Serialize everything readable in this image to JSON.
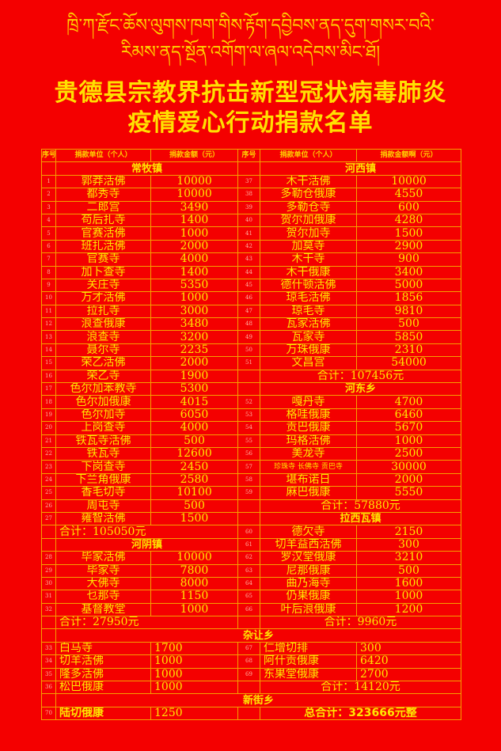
{
  "tibetan": {
    "line1": "ཁྲི་ཀ་རྫོང་ཆོས་ལུགས་ཁག་གིས་རྟོག་དབྱིབས་ནད་དུག་གསར་བའི་",
    "line2": "རིམས་ནད་སྔོན་འགོག་ལ་ཞལ་འདེབས་མིང་ཐོ།"
  },
  "title": {
    "line1": "贵德县宗教界抗击新型冠状病毒肺炎",
    "line2": "疫情爱心行动捐款名单"
  },
  "colors": {
    "background": "#f40000",
    "text": "#ffe600",
    "grid": "#f5a000"
  },
  "header": {
    "left": {
      "no": "序号",
      "name": "捐款单位（个人）",
      "amount": "捐款金额（元）"
    },
    "right": {
      "no": "序号",
      "name": "捐款单位（个人）",
      "amount": "捐款金额啊（元）"
    }
  },
  "left": [
    {
      "section": "常牧镇"
    },
    {
      "no": "1",
      "name": "郭莽活佛",
      "amount": "10000"
    },
    {
      "no": "2",
      "name": "都秀寺",
      "amount": "10000"
    },
    {
      "no": "3",
      "name": "二郎宫",
      "amount": "3490"
    },
    {
      "no": "4",
      "name": "苟后扎寺",
      "amount": "1400"
    },
    {
      "no": "5",
      "name": "官赛活佛",
      "amount": "1000"
    },
    {
      "no": "6",
      "name": "班扎活佛",
      "amount": "2000"
    },
    {
      "no": "7",
      "name": "官赛寺",
      "amount": "4000"
    },
    {
      "no": "8",
      "name": "加卜查寺",
      "amount": "1400"
    },
    {
      "no": "9",
      "name": "关庄寺",
      "amount": "5350"
    },
    {
      "no": "10",
      "name": "万才活佛",
      "amount": "1000"
    },
    {
      "no": "11",
      "name": "拉扎寺",
      "amount": "3000"
    },
    {
      "no": "12",
      "name": "浪查俄康",
      "amount": "3480"
    },
    {
      "no": "13",
      "name": "浪查寺",
      "amount": "3200"
    },
    {
      "no": "14",
      "name": "聂尔寺",
      "amount": "2235"
    },
    {
      "no": "15",
      "name": "荣乙活佛",
      "amount": "2000"
    },
    {
      "no": "16",
      "name": "荣乙寺",
      "amount": "1900"
    },
    {
      "no": "17",
      "name": "色尔加苯教寺",
      "amount": "5300"
    },
    {
      "no": "18",
      "name": "色尔加俄康",
      "amount": "4015"
    },
    {
      "no": "19",
      "name": "色尔加寺",
      "amount": "6050"
    },
    {
      "no": "20",
      "name": "上岗查寺",
      "amount": "4000"
    },
    {
      "no": "21",
      "name": "铁瓦寺活佛",
      "amount": "500"
    },
    {
      "no": "22",
      "name": "铁瓦寺",
      "amount": "12600"
    },
    {
      "no": "23",
      "name": "下岗查寺",
      "amount": "2450"
    },
    {
      "no": "24",
      "name": "下兰角俄康",
      "amount": "2580"
    },
    {
      "no": "25",
      "name": "香毛切寺",
      "amount": "10100"
    },
    {
      "no": "26",
      "name": "周屯寺",
      "amount": "500"
    },
    {
      "no": "27",
      "name": "雍智活佛",
      "amount": "1500"
    },
    {
      "subtotal": "合计：105050元"
    },
    {
      "section": "河阴镇"
    },
    {
      "no": "28",
      "name": "毕家活佛",
      "amount": "10000"
    },
    {
      "no": "29",
      "name": "毕家寺",
      "amount": "7800"
    },
    {
      "no": "30",
      "name": "大佛寺",
      "amount": "8000"
    },
    {
      "no": "31",
      "name": "乜那寺",
      "amount": "1150"
    },
    {
      "no": "32",
      "name": "基督教堂",
      "amount": "1000"
    },
    {
      "subtotal": "合计：27950元"
    }
  ],
  "right": [
    {
      "section": "河西镇"
    },
    {
      "no": "37",
      "name": "木干活佛",
      "amount": "10000"
    },
    {
      "no": "38",
      "name": "多勒仓俄康",
      "amount": "4550"
    },
    {
      "no": "39",
      "name": "多勒仓寺",
      "amount": "600"
    },
    {
      "no": "40",
      "name": "贺尔加俄康",
      "amount": "4280"
    },
    {
      "no": "41",
      "name": "贺尔加寺",
      "amount": "1500"
    },
    {
      "no": "42",
      "name": "加莫寺",
      "amount": "2900"
    },
    {
      "no": "43",
      "name": "木干寺",
      "amount": "900"
    },
    {
      "no": "44",
      "name": "木干俄康",
      "amount": "3400"
    },
    {
      "no": "45",
      "name": "德什顿活佛",
      "amount": "5000"
    },
    {
      "no": "46",
      "name": "琼毛活佛",
      "amount": "1856"
    },
    {
      "no": "47",
      "name": "琼毛寺",
      "amount": "9810"
    },
    {
      "no": "48",
      "name": "瓦家活佛",
      "amount": "500"
    },
    {
      "no": "49",
      "name": "瓦家寺",
      "amount": "5850"
    },
    {
      "no": "50",
      "name": "万珠俄康",
      "amount": "2310"
    },
    {
      "no": "51",
      "name": "文昌宫",
      "amount": "54000"
    },
    {
      "subtotal": "合计：107456元"
    },
    {
      "section": "河东乡"
    },
    {
      "no": "52",
      "name": "嘎丹寺",
      "amount": "4700"
    },
    {
      "no": "53",
      "name": "格哇俄康",
      "amount": "6460"
    },
    {
      "no": "54",
      "name": "贡巴俄康",
      "amount": "5670"
    },
    {
      "no": "55",
      "name": "玛格活佛",
      "amount": "1000"
    },
    {
      "no": "56",
      "name": "美龙寺",
      "amount": "2500"
    },
    {
      "no": "57",
      "name": "珍珠寺 长佛寺 贡巴寺",
      "amount": "30000",
      "small": true
    },
    {
      "no": "58",
      "name": "堪布诺日",
      "amount": "2000"
    },
    {
      "no": "59",
      "name": "麻巴俄康",
      "amount": "5550"
    },
    {
      "subtotal": "合计：57880元"
    },
    {
      "section": "拉西瓦镇"
    },
    {
      "no": "60",
      "name": "德欠寺",
      "amount": "2150"
    },
    {
      "no": "61",
      "name": "切羊益西活佛",
      "amount": "300"
    },
    {
      "no": "62",
      "name": "罗汉堂俄康",
      "amount": "3210"
    },
    {
      "no": "63",
      "name": "尼那俄康",
      "amount": "500"
    },
    {
      "no": "64",
      "name": "曲乃海寺",
      "amount": "1600"
    },
    {
      "no": "65",
      "name": "仍果俄康",
      "amount": "1000"
    },
    {
      "no": "66",
      "name": "叶后浪俄康",
      "amount": "1200"
    },
    {
      "subtotal": "合计：9960元"
    }
  ],
  "zarang": {
    "section": "杂让乡",
    "left": [
      {
        "no": "33",
        "name": "白马寺",
        "amount": "1700"
      },
      {
        "no": "34",
        "name": "切羊活佛",
        "amount": "1000"
      },
      {
        "no": "35",
        "name": "隆多活佛",
        "amount": "1000"
      },
      {
        "no": "36",
        "name": "松巴俄康",
        "amount": "1000"
      }
    ],
    "right": [
      {
        "no": "67",
        "name": "仁增切排",
        "amount": "300"
      },
      {
        "no": "68",
        "name": "阿什贡俄康",
        "amount": "6420"
      },
      {
        "no": "69",
        "name": "东果堂俄康",
        "amount": "2700"
      },
      {
        "subtotal": "合计：14120元"
      }
    ]
  },
  "xinjie": {
    "section": "新街乡",
    "row": {
      "no": "70",
      "name": "陆切俄康",
      "amount": "1250"
    },
    "grand_total": "总合计：323666元整"
  }
}
